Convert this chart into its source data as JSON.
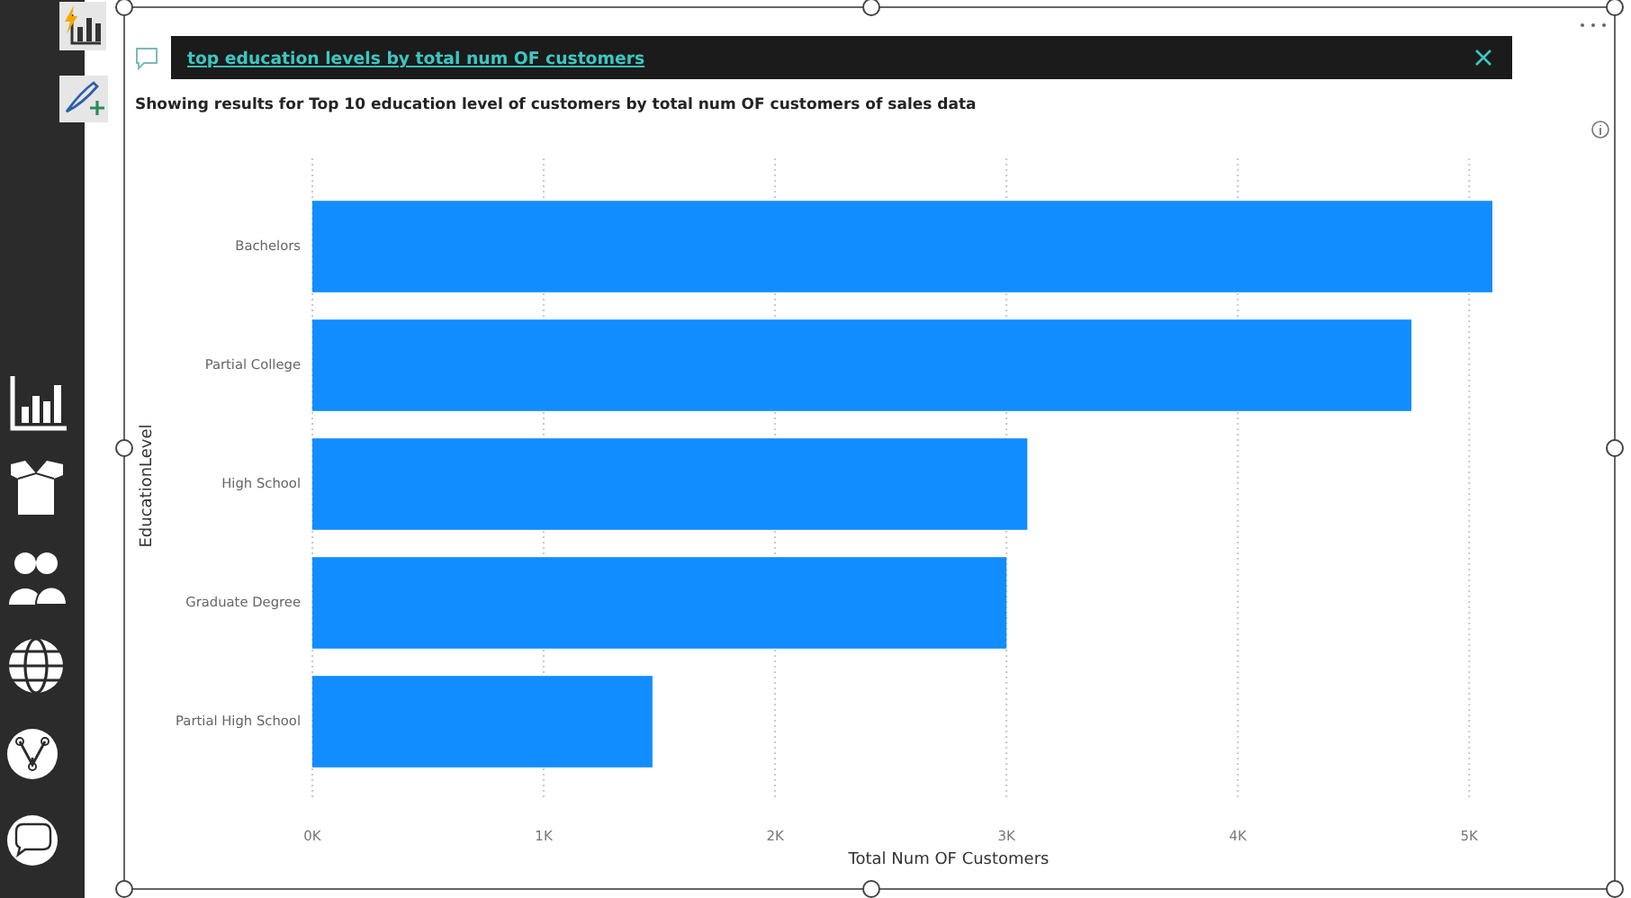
{
  "chart_data": {
    "type": "bar",
    "orientation": "horizontal",
    "title": "top education levels by total num OF customers",
    "subtitle": "Showing results for Top 10 education level of customers by total num OF customers of sales data",
    "xlabel": "Total Num OF Customers",
    "ylabel": "EducationLevel",
    "categories": [
      "Bachelors",
      "Partial College",
      "High School",
      "Graduate Degree",
      "Partial High School"
    ],
    "values": [
      5100,
      4750,
      3090,
      3000,
      1470
    ],
    "color": "#118dff",
    "xlim": [
      0,
      5100
    ],
    "xticks": [
      {
        "value": 0,
        "label": "0K"
      },
      {
        "value": 1000,
        "label": "1K"
      },
      {
        "value": 2000,
        "label": "2K"
      },
      {
        "value": 3000,
        "label": "3K"
      },
      {
        "value": 4000,
        "label": "4K"
      },
      {
        "value": 5000,
        "label": "5K"
      }
    ],
    "grid": "x"
  }
}
